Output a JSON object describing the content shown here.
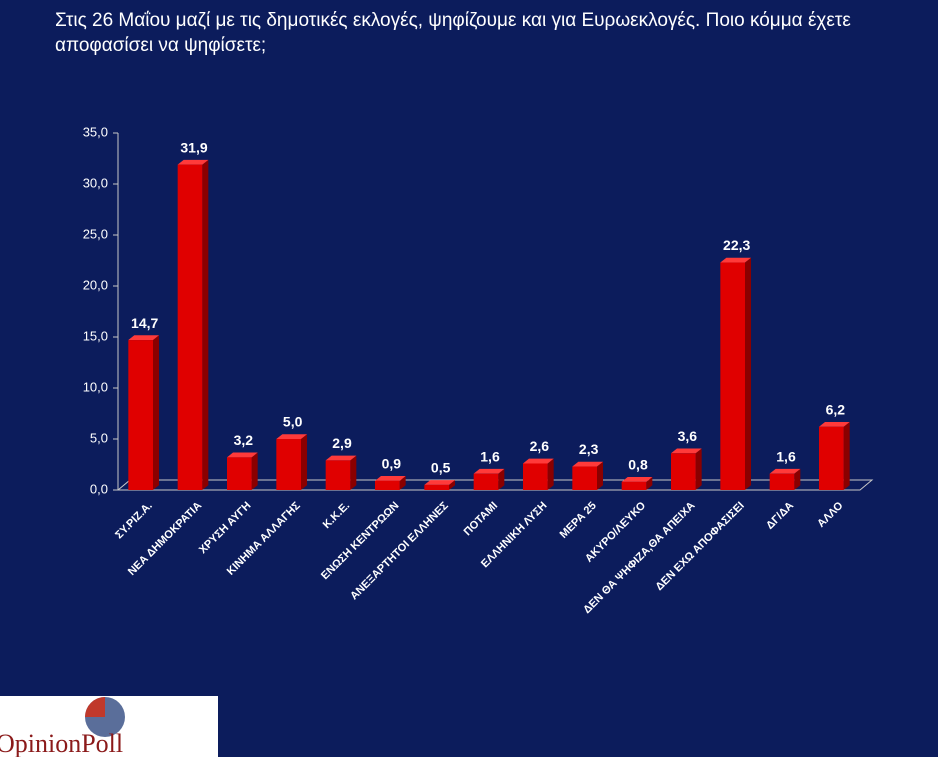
{
  "chart_data": {
    "type": "bar",
    "title": "Στις 26 Μαΐου μαζί με τις δημοτικές εκλογές, ψηφίζουμε και για Ευρωεκλογές. Ποιο κόμμα έχετε αποφασίσει να ψηφίσετε;",
    "categories": [
      "ΣΥ.ΡΙΖ.Α.",
      "ΝΕΑ ΔΗΜΟΚΡΑΤΙΑ",
      "ΧΡΥΣΗ ΑΥΓΗ",
      "ΚΙΝΗΜΑ ΑΛΛΑΓΗΣ",
      "Κ.Κ.Ε.",
      "ΕΝΩΣΗ ΚΕΝΤΡΩΩΝ",
      "ΑΝΕΞΑΡΤΗΤΟΙ ΕΛΛΗΝΕΣ",
      "ΠΟΤΑΜΙ",
      "ΕΛΛΗΝΙΚΗ ΛΥΣΗ",
      "ΜΕΡΑ 25",
      "ΑΚΥΡΟ/ΛΕΥΚΟ",
      "ΔΕΝ ΘΑ ΨΗΦΙΖΑ,ΘΑ ΑΠΕΙΧΑ",
      "ΔΕΝ ΕΧΩ ΑΠΟΦΑΣΙΣΕΙ",
      "ΔΓ/ΔΑ",
      "ΑΛΛΟ"
    ],
    "values": [
      14.7,
      31.9,
      3.2,
      5.0,
      2.9,
      0.9,
      0.5,
      1.6,
      2.6,
      2.3,
      0.8,
      3.6,
      22.3,
      1.6,
      6.2
    ],
    "value_labels": [
      "14,7",
      "31,9",
      "3,2",
      "5,0",
      "2,9",
      "0,9",
      "0,5",
      "1,6",
      "2,6",
      "2,3",
      "0,8",
      "3,6",
      "22,3",
      "1,6",
      "6,2"
    ],
    "color": "#e00000",
    "ylim": [
      0,
      35
    ],
    "yticks": [
      {
        "value": 0,
        "label": "0,0"
      },
      {
        "value": 5,
        "label": "5,0"
      },
      {
        "value": 10,
        "label": "10,0"
      },
      {
        "value": 15,
        "label": "15,0"
      },
      {
        "value": 20,
        "label": "20,0"
      },
      {
        "value": 25,
        "label": "25,0"
      },
      {
        "value": 30,
        "label": "30,0"
      },
      {
        "value": 35,
        "label": "35,0"
      }
    ],
    "grid": false
  },
  "logo": "OpinionPoll"
}
